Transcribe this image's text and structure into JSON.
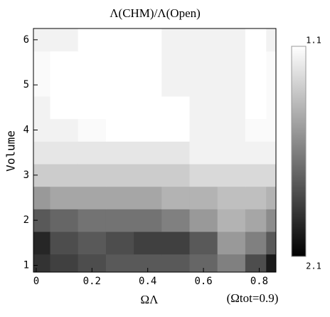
{
  "chart_data": {
    "type": "contour",
    "title": "Λ(CHM)/Λ(Open)",
    "x_label": "ΩΛ",
    "y_label": "Volume",
    "annotation": "(Ωtot=0.9)",
    "x": [
      0,
      0.1,
      0.2,
      0.3,
      0.4,
      0.5,
      0.6,
      0.7,
      0.8,
      0.85
    ],
    "y": [
      1,
      1.5,
      2,
      2.5,
      3,
      3.5,
      4,
      4.5,
      5,
      5.5,
      6
    ],
    "z": [
      [
        1.9,
        1.85,
        1.8,
        1.75,
        1.75,
        1.75,
        1.7,
        1.6,
        1.8,
        2.0
      ],
      [
        1.95,
        1.8,
        1.75,
        1.8,
        1.85,
        1.85,
        1.75,
        1.5,
        1.6,
        1.75
      ],
      [
        1.75,
        1.7,
        1.65,
        1.65,
        1.65,
        1.6,
        1.5,
        1.4,
        1.45,
        1.55
      ],
      [
        1.5,
        1.45,
        1.45,
        1.45,
        1.45,
        1.4,
        1.4,
        1.35,
        1.35,
        1.4
      ],
      [
        1.3,
        1.3,
        1.3,
        1.3,
        1.3,
        1.3,
        1.25,
        1.25,
        1.25,
        1.25
      ],
      [
        1.2,
        1.2,
        1.2,
        1.2,
        1.2,
        1.2,
        1.15,
        1.15,
        1.15,
        1.15
      ],
      [
        1.15,
        1.15,
        1.12,
        1.1,
        1.1,
        1.1,
        1.15,
        1.15,
        1.12,
        1.12
      ],
      [
        1.15,
        1.1,
        1.08,
        1.05,
        1.05,
        1.1,
        1.15,
        1.15,
        1.1,
        1.12
      ],
      [
        1.12,
        1.05,
        1.05,
        1.05,
        1.1,
        1.15,
        1.15,
        1.15,
        1.05,
        1.12
      ],
      [
        1.12,
        1.05,
        1.05,
        1.05,
        1.1,
        1.15,
        1.15,
        1.15,
        1.05,
        1.12
      ],
      [
        1.15,
        1.15,
        1.1,
        1.1,
        1.1,
        1.15,
        1.15,
        1.15,
        1.08,
        1.15
      ]
    ],
    "xlim": [
      -0.01,
      0.86
    ],
    "ylim": [
      0.85,
      6.25
    ],
    "xticks": [
      0,
      0.2,
      0.4,
      0.6,
      0.8
    ],
    "yticks": [
      1,
      2,
      3,
      4,
      5,
      6
    ],
    "zlim": [
      1.1,
      2.1
    ],
    "zticks": [
      1.1,
      2.1
    ]
  }
}
